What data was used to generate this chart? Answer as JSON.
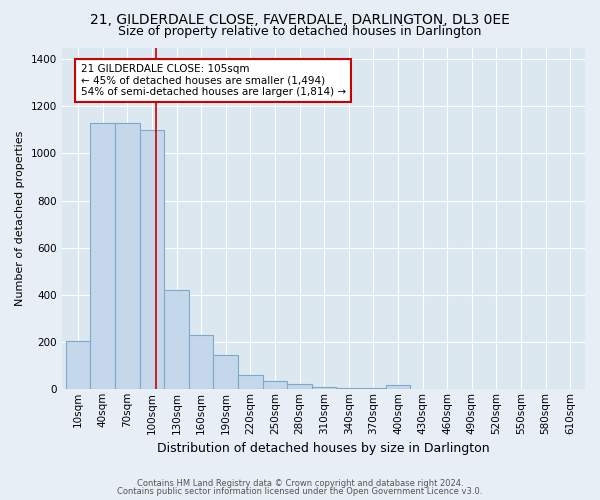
{
  "title": "21, GILDERDALE CLOSE, FAVERDALE, DARLINGTON, DL3 0EE",
  "subtitle": "Size of property relative to detached houses in Darlington",
  "xlabel": "Distribution of detached houses by size in Darlington",
  "ylabel": "Number of detached properties",
  "bin_labels": [
    "10sqm",
    "40sqm",
    "70sqm",
    "100sqm",
    "130sqm",
    "160sqm",
    "190sqm",
    "220sqm",
    "250sqm",
    "280sqm",
    "310sqm",
    "340sqm",
    "370sqm",
    "400sqm",
    "430sqm",
    "460sqm",
    "490sqm",
    "520sqm",
    "550sqm",
    "580sqm",
    "610sqm"
  ],
  "bar_values": [
    205,
    1130,
    1130,
    1100,
    420,
    230,
    145,
    60,
    35,
    20,
    10,
    5,
    5,
    15,
    0,
    0,
    0,
    0,
    0,
    0,
    0
  ],
  "bar_color": "#c5d8eb",
  "bar_edgecolor": "#7aaac8",
  "ylim": [
    0,
    1450
  ],
  "yticks": [
    0,
    200,
    400,
    600,
    800,
    1000,
    1200,
    1400
  ],
  "property_size_sqm": 105,
  "property_line_color": "#cc0000",
  "annotation_line1": "21 GILDERDALE CLOSE: 105sqm",
  "annotation_line2": "← 45% of detached houses are smaller (1,494)",
  "annotation_line3": "54% of semi-detached houses are larger (1,814) →",
  "annotation_box_color": "#cc0000",
  "footer1": "Contains HM Land Registry data © Crown copyright and database right 2024.",
  "footer2": "Contains public sector information licensed under the Open Government Licence v3.0.",
  "bg_color": "#e8eef5",
  "plot_bg_color": "#dce8f0",
  "title_fontsize": 10,
  "subtitle_fontsize": 9,
  "xlabel_fontsize": 9,
  "ylabel_fontsize": 8,
  "tick_fontsize": 7.5,
  "bin_width": 30,
  "n_bins": 21
}
